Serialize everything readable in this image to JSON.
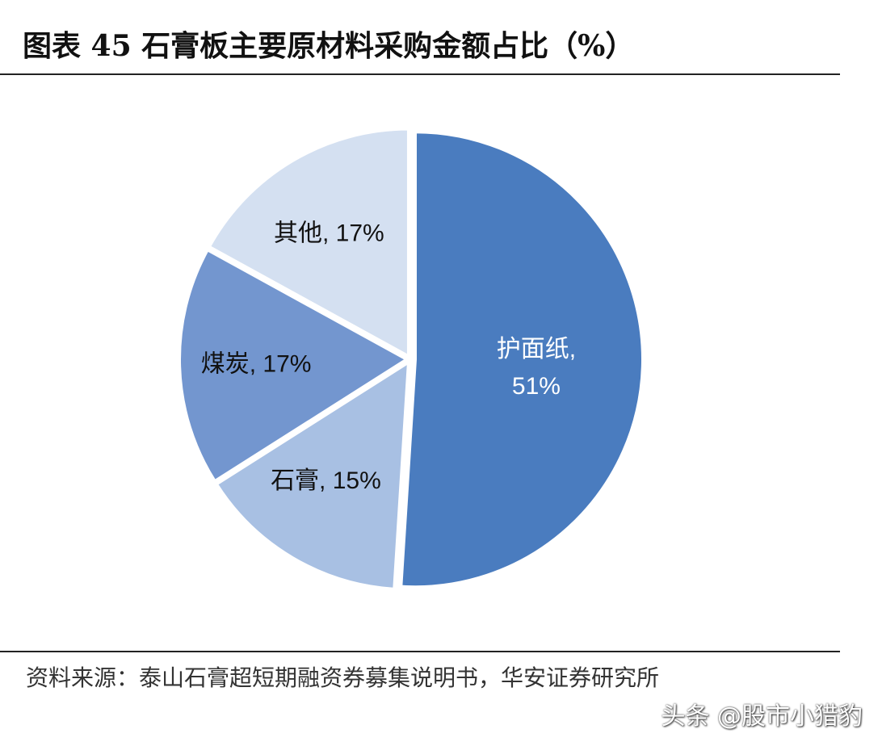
{
  "figure": {
    "title": "图表 45 石膏板主要原材料采购金额占比（%）",
    "source": "资料来源：泰山石膏超短期融资券募集说明书，华安证券研究所",
    "watermark": "头条 @股市小猎豹"
  },
  "chart_data": {
    "type": "pie",
    "title": "图表 45 石膏板主要原材料采购金额占比（%）",
    "slices": [
      {
        "label": "护面纸",
        "value": 51,
        "display": "51%",
        "color": "#4a7cbf",
        "text_color": "#ffffff"
      },
      {
        "label": "石膏",
        "value": 15,
        "display": "15%",
        "color": "#a8c0e3",
        "text_color": "#111111"
      },
      {
        "label": "煤炭",
        "value": 17,
        "display": "17%",
        "color": "#7396cf",
        "text_color": "#111111"
      },
      {
        "label": "其他",
        "value": 17,
        "display": "17%",
        "color": "#d4e0f1",
        "text_color": "#111111"
      }
    ],
    "start_angle_deg": 0,
    "direction": "clockwise",
    "exploded": true
  }
}
